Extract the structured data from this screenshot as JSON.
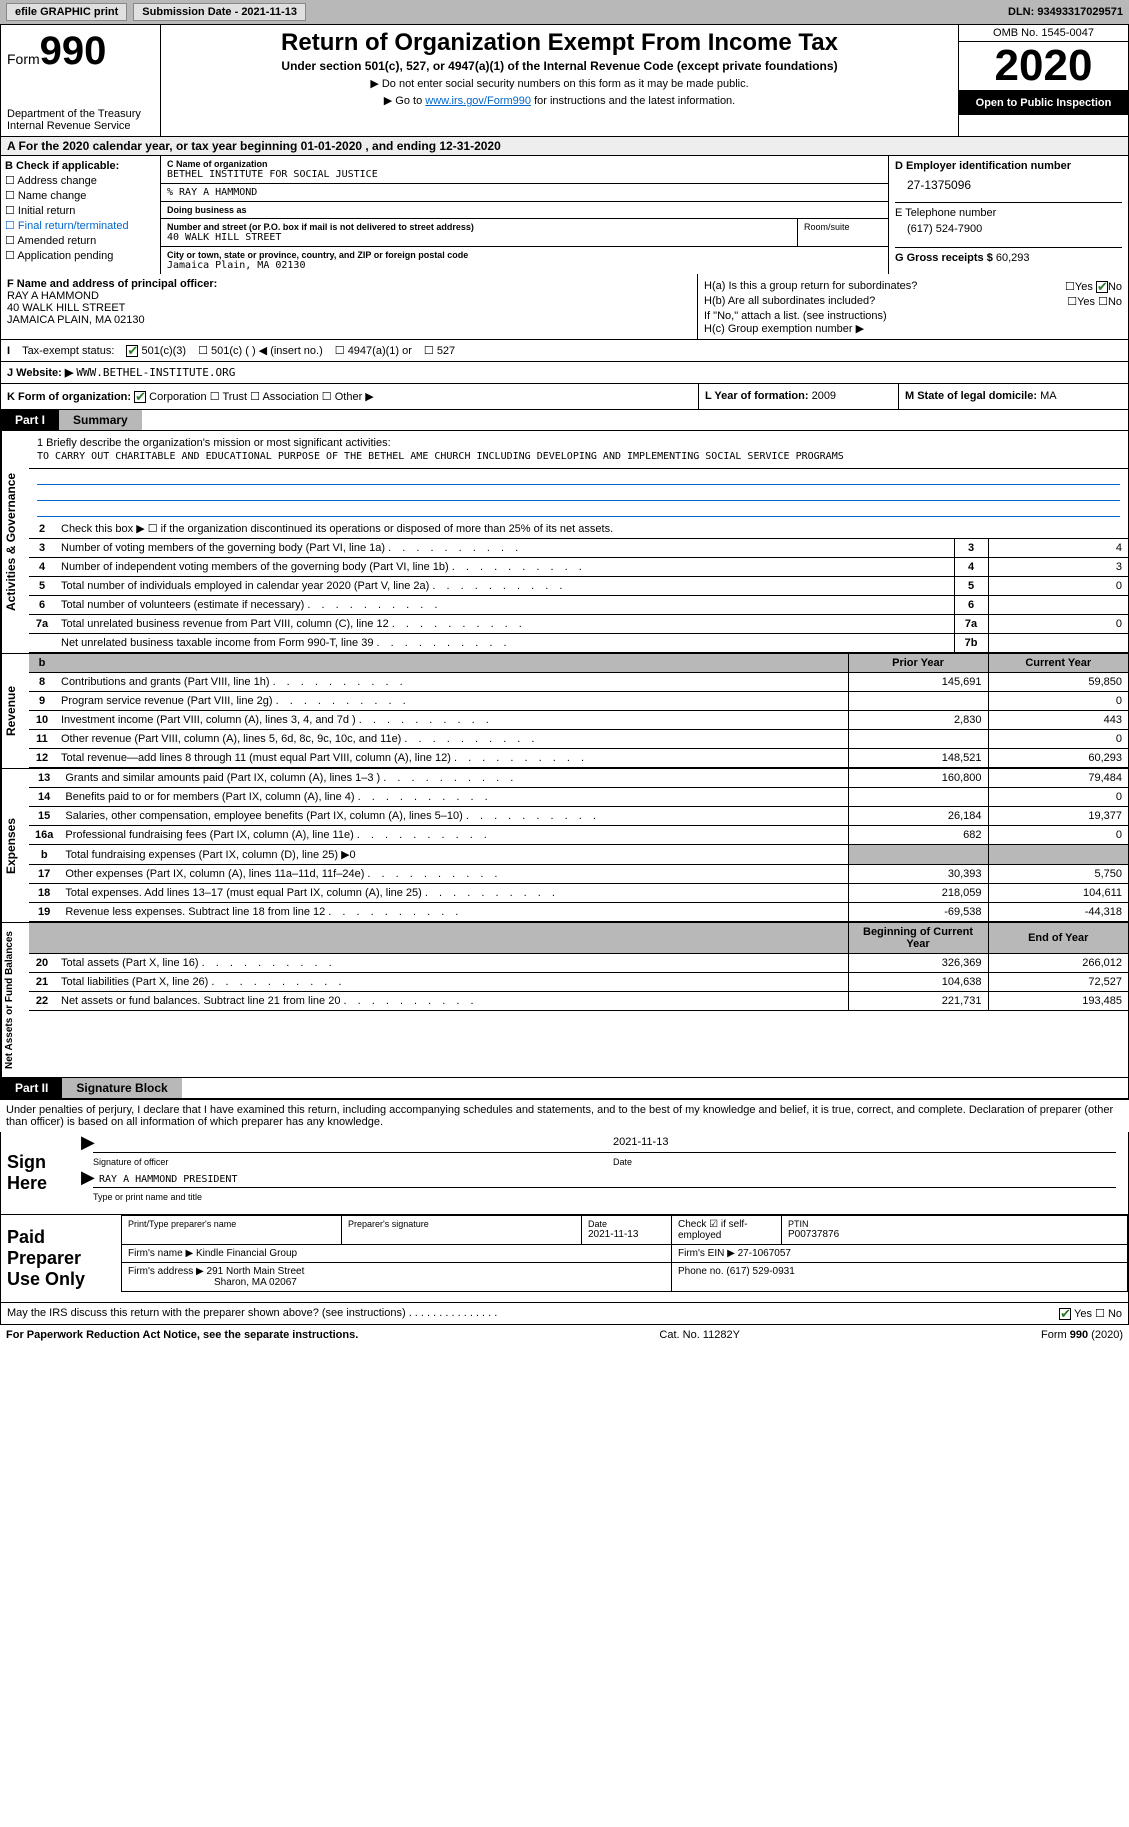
{
  "toolbar": {
    "efile": "efile GRAPHIC print",
    "sub_date_label": "Submission Date - 2021-11-13",
    "dln": "DLN: 93493317029571"
  },
  "header": {
    "form_word": "Form",
    "form_num": "990",
    "dept": "Department of the Treasury\nInternal Revenue Service",
    "title": "Return of Organization Exempt From Income Tax",
    "subtitle": "Under section 501(c), 527, or 4947(a)(1) of the Internal Revenue Code (except private foundations)",
    "note1": "▶ Do not enter social security numbers on this form as it may be made public.",
    "note2_pre": "▶ Go to ",
    "note2_link": "www.irs.gov/Form990",
    "note2_post": " for instructions and the latest information.",
    "omb": "OMB No. 1545-0047",
    "year": "2020",
    "inspect": "Open to Public Inspection"
  },
  "line_a": "A For the 2020 calendar year, or tax year beginning 01-01-2020   , and ending 12-31-2020",
  "section_b": {
    "label": "B Check if applicable:",
    "opts": [
      "Address change",
      "Name change",
      "Initial return",
      "Final return/terminated",
      "Amended return",
      "Application pending"
    ]
  },
  "section_c": {
    "name_label": "C Name of organization",
    "name": "BETHEL INSTITUTE FOR SOCIAL JUSTICE",
    "care_of": "% RAY A HAMMOND",
    "dba_label": "Doing business as",
    "addr_label": "Number and street (or P.O. box if mail is not delivered to street address)",
    "addr": "40 WALK HILL STREET",
    "room_label": "Room/suite",
    "city_label": "City or town, state or province, country, and ZIP or foreign postal code",
    "city": "Jamaica Plain, MA  02130"
  },
  "section_d": {
    "label": "D Employer identification number",
    "ein": "27-1375096",
    "phone_label": "E Telephone number",
    "phone": "(617) 524-7900",
    "gross_label": "G Gross receipts $",
    "gross": "60,293"
  },
  "section_f": {
    "label": "F  Name and address of principal officer:",
    "name": "RAY A HAMMOND",
    "addr1": "40 WALK HILL STREET",
    "addr2": "JAMAICA PLAIN, MA  02130"
  },
  "section_h": {
    "ha": "H(a)  Is this a group return for subordinates?",
    "hb": "H(b)  Are all subordinates included?",
    "hb_note": "If \"No,\" attach a list. (see instructions)",
    "hc": "H(c)  Group exemption number ▶",
    "yes": "Yes",
    "no": "No"
  },
  "tax_status": {
    "label": "Tax-exempt status:",
    "o1": "501(c)(3)",
    "o2": "501(c) (  ) ◀ (insert no.)",
    "o3": "4947(a)(1) or",
    "o4": "527"
  },
  "website": {
    "label": "J  Website: ▶",
    "val": "WWW.BETHEL-INSTITUTE.ORG"
  },
  "kform": {
    "label": "K Form of organization:",
    "opts": [
      "Corporation",
      "Trust",
      "Association",
      "Other ▶"
    ],
    "year_label": "L Year of formation:",
    "year": "2009",
    "domicile_label": "M State of legal domicile:",
    "domicile": "MA"
  },
  "part1": {
    "hdr": "Part I",
    "title": "Summary"
  },
  "mission": {
    "label": "1  Briefly describe the organization's mission or most significant activities:",
    "text": "TO CARRY OUT CHARITABLE AND EDUCATIONAL PURPOSE OF THE BETHEL AME CHURCH INCLUDING DEVELOPING AND IMPLEMENTING SOCIAL SERVICE PROGRAMS"
  },
  "gov_lines": [
    {
      "n": "2",
      "t": "Check this box ▶ ☐  if the organization discontinued its operations or disposed of more than 25% of its net assets."
    },
    {
      "n": "3",
      "t": "Number of voting members of the governing body (Part VI, line 1a)",
      "r": "3",
      "v": "4"
    },
    {
      "n": "4",
      "t": "Number of independent voting members of the governing body (Part VI, line 1b)",
      "r": "4",
      "v": "3"
    },
    {
      "n": "5",
      "t": "Total number of individuals employed in calendar year 2020 (Part V, line 2a)",
      "r": "5",
      "v": "0"
    },
    {
      "n": "6",
      "t": "Total number of volunteers (estimate if necessary)",
      "r": "6",
      "v": ""
    },
    {
      "n": "7a",
      "t": "Total unrelated business revenue from Part VIII, column (C), line 12",
      "r": "7a",
      "v": "0"
    },
    {
      "n": "",
      "t": "Net unrelated business taxable income from Form 990-T, line 39",
      "r": "7b",
      "v": ""
    }
  ],
  "col_hdrs": {
    "prior": "Prior Year",
    "current": "Current Year",
    "begin": "Beginning of Current Year",
    "end": "End of Year"
  },
  "revenue": [
    {
      "n": "8",
      "t": "Contributions and grants (Part VIII, line 1h)",
      "p": "145,691",
      "c": "59,850"
    },
    {
      "n": "9",
      "t": "Program service revenue (Part VIII, line 2g)",
      "p": "",
      "c": "0"
    },
    {
      "n": "10",
      "t": "Investment income (Part VIII, column (A), lines 3, 4, and 7d )",
      "p": "2,830",
      "c": "443"
    },
    {
      "n": "11",
      "t": "Other revenue (Part VIII, column (A), lines 5, 6d, 8c, 9c, 10c, and 11e)",
      "p": "",
      "c": "0"
    },
    {
      "n": "12",
      "t": "Total revenue—add lines 8 through 11 (must equal Part VIII, column (A), line 12)",
      "p": "148,521",
      "c": "60,293"
    }
  ],
  "expenses": [
    {
      "n": "13",
      "t": "Grants and similar amounts paid (Part IX, column (A), lines 1–3 )",
      "p": "160,800",
      "c": "79,484"
    },
    {
      "n": "14",
      "t": "Benefits paid to or for members (Part IX, column (A), line 4)",
      "p": "",
      "c": "0"
    },
    {
      "n": "15",
      "t": "Salaries, other compensation, employee benefits (Part IX, column (A), lines 5–10)",
      "p": "26,184",
      "c": "19,377"
    },
    {
      "n": "16a",
      "t": "Professional fundraising fees (Part IX, column (A), line 11e)",
      "p": "682",
      "c": "0"
    },
    {
      "n": "b",
      "t": "Total fundraising expenses (Part IX, column (D), line 25) ▶0",
      "shaded": true
    },
    {
      "n": "17",
      "t": "Other expenses (Part IX, column (A), lines 11a–11d, 11f–24e)",
      "p": "30,393",
      "c": "5,750"
    },
    {
      "n": "18",
      "t": "Total expenses. Add lines 13–17 (must equal Part IX, column (A), line 25)",
      "p": "218,059",
      "c": "104,611"
    },
    {
      "n": "19",
      "t": "Revenue less expenses. Subtract line 18 from line 12",
      "p": "-69,538",
      "c": "-44,318"
    }
  ],
  "netassets": [
    {
      "n": "20",
      "t": "Total assets (Part X, line 16)",
      "p": "326,369",
      "c": "266,012"
    },
    {
      "n": "21",
      "t": "Total liabilities (Part X, line 26)",
      "p": "104,638",
      "c": "72,527"
    },
    {
      "n": "22",
      "t": "Net assets or fund balances. Subtract line 21 from line 20",
      "p": "221,731",
      "c": "193,485"
    }
  ],
  "vtabs": {
    "gov": "Activities & Governance",
    "rev": "Revenue",
    "exp": "Expenses",
    "net": "Net Assets or Fund Balances"
  },
  "part2": {
    "hdr": "Part II",
    "title": "Signature Block"
  },
  "sig": {
    "intro": "Under penalties of perjury, I declare that I have examined this return, including accompanying schedules and statements, and to the best of my knowledge and belief, it is true, correct, and complete. Declaration of preparer (other than officer) is based on all information of which preparer has any knowledge.",
    "sign_here": "Sign Here",
    "sig_label": "Signature of officer",
    "date_label": "Date",
    "date": "2021-11-13",
    "name": "RAY A HAMMOND  PRESIDENT",
    "name_label": "Type or print name and title"
  },
  "prep": {
    "paid": "Paid Preparer Use Only",
    "name_lbl": "Print/Type preparer's name",
    "sig_lbl": "Preparer's signature",
    "date_lbl": "Date",
    "date": "2021-11-13",
    "check_lbl": "Check ☑ if self-employed",
    "ptin_lbl": "PTIN",
    "ptin": "P00737876",
    "firm_name_lbl": "Firm's name   ▶",
    "firm_name": "Kindle Financial Group",
    "firm_ein_lbl": "Firm's EIN ▶",
    "firm_ein": "27-1067057",
    "firm_addr_lbl": "Firm's address ▶",
    "firm_addr": "291 North Main Street",
    "firm_addr2": "Sharon, MA  02067",
    "phone_lbl": "Phone no.",
    "phone": "(617) 529-0931"
  },
  "discuss": {
    "q": "May the IRS discuss this return with the preparer shown above? (see instructions)",
    "yes": "Yes",
    "no": "No"
  },
  "footer": {
    "left": "For Paperwork Reduction Act Notice, see the separate instructions.",
    "mid": "Cat. No. 11282Y",
    "right": "Form 990 (2020)"
  }
}
